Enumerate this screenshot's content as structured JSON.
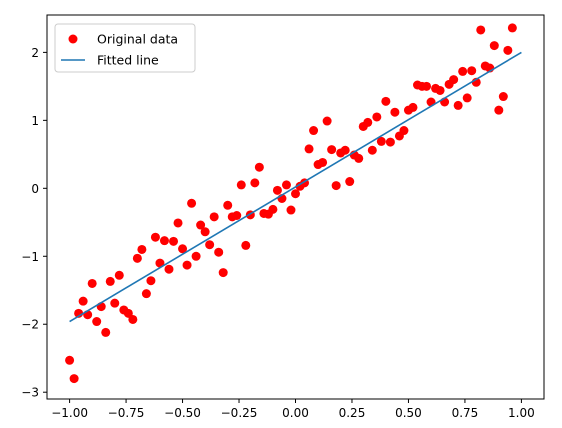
{
  "chart_data": {
    "type": "scatter",
    "title": "",
    "xlabel": "",
    "ylabel": "",
    "xlim": [
      -1.1,
      1.1
    ],
    "ylim": [
      -3.1,
      2.55
    ],
    "xticks": [
      -1.0,
      -0.75,
      -0.5,
      -0.25,
      0.0,
      0.25,
      0.5,
      0.75,
      1.0
    ],
    "xtick_labels": [
      "−1.00",
      "−0.75",
      "−0.50",
      "−0.25",
      "0.00",
      "0.25",
      "0.50",
      "0.75",
      "1.00"
    ],
    "yticks": [
      -3,
      -2,
      -1,
      0,
      1,
      2
    ],
    "ytick_labels": [
      "−3",
      "−2",
      "−1",
      "0",
      "1",
      "2"
    ],
    "grid": false,
    "legend_position": "top-left",
    "series": [
      {
        "name": "Original data",
        "kind": "scatter",
        "color": "#ff0000",
        "points": [
          [
            -1.0,
            -2.53
          ],
          [
            -0.98,
            -2.8
          ],
          [
            -0.96,
            -1.84
          ],
          [
            -0.94,
            -1.66
          ],
          [
            -0.92,
            -1.86
          ],
          [
            -0.9,
            -1.4
          ],
          [
            -0.88,
            -1.96
          ],
          [
            -0.86,
            -1.74
          ],
          [
            -0.84,
            -2.12
          ],
          [
            -0.82,
            -1.37
          ],
          [
            -0.8,
            -1.69
          ],
          [
            -0.78,
            -1.28
          ],
          [
            -0.76,
            -1.79
          ],
          [
            -0.74,
            -1.84
          ],
          [
            -0.72,
            -1.93
          ],
          [
            -0.7,
            -1.03
          ],
          [
            -0.68,
            -0.9
          ],
          [
            -0.66,
            -1.55
          ],
          [
            -0.64,
            -1.36
          ],
          [
            -0.62,
            -0.72
          ],
          [
            -0.6,
            -1.1
          ],
          [
            -0.58,
            -0.77
          ],
          [
            -0.56,
            -1.19
          ],
          [
            -0.54,
            -0.78
          ],
          [
            -0.52,
            -0.51
          ],
          [
            -0.5,
            -0.89
          ],
          [
            -0.48,
            -1.13
          ],
          [
            -0.46,
            -0.22
          ],
          [
            -0.44,
            -1.0
          ],
          [
            -0.42,
            -0.54
          ],
          [
            -0.4,
            -0.64
          ],
          [
            -0.38,
            -0.83
          ],
          [
            -0.36,
            -0.42
          ],
          [
            -0.34,
            -0.94
          ],
          [
            -0.32,
            -1.24
          ],
          [
            -0.3,
            -0.25
          ],
          [
            -0.28,
            -0.42
          ],
          [
            -0.26,
            -0.4
          ],
          [
            -0.24,
            0.05
          ],
          [
            -0.22,
            -0.84
          ],
          [
            -0.2,
            -0.39
          ],
          [
            -0.18,
            0.08
          ],
          [
            -0.16,
            0.31
          ],
          [
            -0.14,
            -0.37
          ],
          [
            -0.12,
            -0.38
          ],
          [
            -0.1,
            -0.31
          ],
          [
            -0.08,
            -0.03
          ],
          [
            -0.06,
            -0.15
          ],
          [
            -0.04,
            0.05
          ],
          [
            -0.02,
            -0.32
          ],
          [
            0.0,
            -0.08
          ],
          [
            0.02,
            0.03
          ],
          [
            0.04,
            0.08
          ],
          [
            0.06,
            0.58
          ],
          [
            0.08,
            0.85
          ],
          [
            0.1,
            0.35
          ],
          [
            0.12,
            0.38
          ],
          [
            0.14,
            0.99
          ],
          [
            0.16,
            0.57
          ],
          [
            0.18,
            0.04
          ],
          [
            0.2,
            0.52
          ],
          [
            0.22,
            0.56
          ],
          [
            0.24,
            0.1
          ],
          [
            0.26,
            0.49
          ],
          [
            0.28,
            0.44
          ],
          [
            0.3,
            0.91
          ],
          [
            0.32,
            0.97
          ],
          [
            0.34,
            0.56
          ],
          [
            0.36,
            1.05
          ],
          [
            0.38,
            0.69
          ],
          [
            0.4,
            1.28
          ],
          [
            0.42,
            0.68
          ],
          [
            0.44,
            1.12
          ],
          [
            0.46,
            0.77
          ],
          [
            0.48,
            0.85
          ],
          [
            0.5,
            1.15
          ],
          [
            0.52,
            1.19
          ],
          [
            0.54,
            1.52
          ],
          [
            0.56,
            1.5
          ],
          [
            0.58,
            1.5
          ],
          [
            0.6,
            1.27
          ],
          [
            0.62,
            1.47
          ],
          [
            0.64,
            1.44
          ],
          [
            0.66,
            1.27
          ],
          [
            0.68,
            1.53
          ],
          [
            0.7,
            1.6
          ],
          [
            0.72,
            1.22
          ],
          [
            0.74,
            1.72
          ],
          [
            0.76,
            1.33
          ],
          [
            0.78,
            1.73
          ],
          [
            0.8,
            1.56
          ],
          [
            0.82,
            2.33
          ],
          [
            0.84,
            1.8
          ],
          [
            0.86,
            1.77
          ],
          [
            0.88,
            2.1
          ],
          [
            0.9,
            1.15
          ],
          [
            0.92,
            1.35
          ],
          [
            0.94,
            2.03
          ],
          [
            0.96,
            2.36
          ]
        ]
      },
      {
        "name": "Fitted line",
        "kind": "line",
        "color": "#1f77b4",
        "points": [
          [
            -1.0,
            -1.96
          ],
          [
            1.0,
            2.0
          ]
        ]
      }
    ]
  }
}
